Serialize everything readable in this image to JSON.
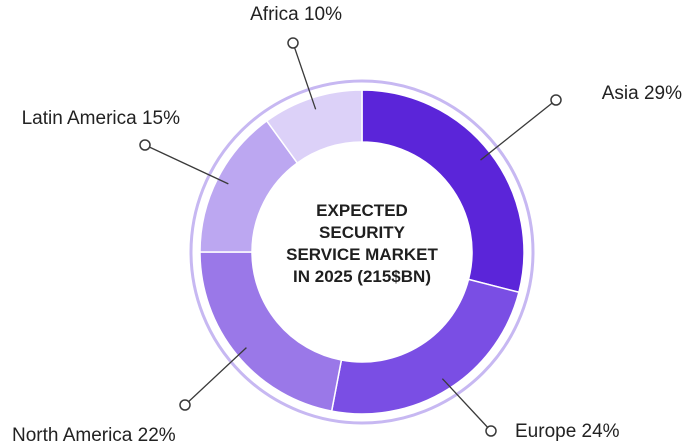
{
  "chart_data": {
    "type": "pie",
    "variant": "donut",
    "title_lines": [
      "EXPECTED",
      "SECURITY",
      "SERVICE MARKET",
      "IN 2025 (215$BN)"
    ],
    "slices": [
      {
        "label": "Asia 29%",
        "name": "Asia",
        "value": 29,
        "color": "#5b25d9"
      },
      {
        "label": "Europe 24%",
        "name": "Europe",
        "value": 24,
        "color": "#7a4ee4"
      },
      {
        "label": "North America 22%",
        "name": "North America",
        "value": 22,
        "color": "#9a78e8"
      },
      {
        "label": "Latin America 15%",
        "name": "Latin America",
        "value": 15,
        "color": "#bca7f1"
      },
      {
        "label": "Africa 10%",
        "name": "Africa",
        "value": 10,
        "color": "#dcd1f8"
      }
    ],
    "ring_color": "#c7b8f2",
    "leader_color": "#3a3a3a"
  }
}
